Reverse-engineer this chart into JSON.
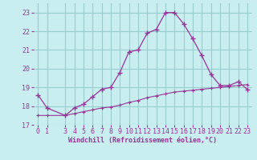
{
  "xlabel": "Windchill (Refroidissement éolien,°C)",
  "bg_color": "#c8eef0",
  "line_color": "#993399",
  "grid_color": "#99cccc",
  "x_main": [
    0,
    1,
    3,
    4,
    5,
    6,
    7,
    8,
    9,
    10,
    11,
    12,
    13,
    14,
    15,
    16,
    17,
    18,
    19,
    20,
    21,
    22,
    23
  ],
  "y_main": [
    18.6,
    17.9,
    17.5,
    17.9,
    18.1,
    18.5,
    18.9,
    19.0,
    19.8,
    20.9,
    21.0,
    21.9,
    22.1,
    23.0,
    23.0,
    22.4,
    21.6,
    20.7,
    19.7,
    19.1,
    19.1,
    19.3,
    18.9
  ],
  "x_ref": [
    0,
    1,
    3,
    4,
    5,
    6,
    7,
    8,
    9,
    10,
    11,
    12,
    13,
    14,
    15,
    16,
    17,
    18,
    19,
    20,
    21,
    22,
    23
  ],
  "y_ref": [
    17.5,
    17.5,
    17.5,
    17.6,
    17.7,
    17.8,
    17.9,
    17.95,
    18.05,
    18.2,
    18.3,
    18.45,
    18.55,
    18.65,
    18.75,
    18.8,
    18.85,
    18.9,
    18.95,
    19.0,
    19.05,
    19.1,
    19.15
  ],
  "ylim": [
    17,
    23.5
  ],
  "xlim": [
    -0.5,
    23.5
  ],
  "yticks": [
    17,
    18,
    19,
    20,
    21,
    22,
    23
  ],
  "xticks": [
    0,
    1,
    3,
    4,
    5,
    6,
    7,
    8,
    9,
    10,
    11,
    12,
    13,
    14,
    15,
    16,
    17,
    18,
    19,
    20,
    21,
    22,
    23
  ],
  "xlabel_fontsize": 6,
  "tick_fontsize": 6
}
